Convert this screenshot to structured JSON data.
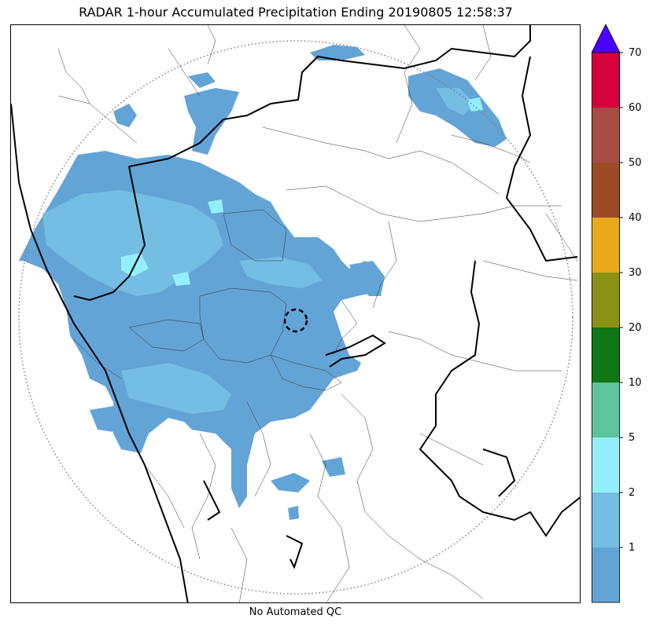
{
  "title": "RADAR 1-hour Accumulated Precipitation Ending 20190805 12:58:37",
  "footer_note": "No Automated QC",
  "colorbar": {
    "bins": [
      {
        "color": "#63a4d6"
      },
      {
        "color": "#74bde3"
      },
      {
        "color": "#94effd"
      },
      {
        "color": "#5ec49b"
      },
      {
        "color": "#107616"
      },
      {
        "color": "#8b9213"
      },
      {
        "color": "#e8a91a"
      },
      {
        "color": "#9c4b25"
      },
      {
        "color": "#a64c44"
      },
      {
        "color": "#d6003e"
      }
    ],
    "extend_color": "#4b00ff",
    "tick_labels": [
      "1",
      "2",
      "5",
      "10",
      "20",
      "30",
      "40",
      "50",
      "60",
      "70"
    ]
  },
  "map": {
    "light_color": "#63a4d6",
    "medium_color": "#74bde3",
    "bright_color": "#94effd",
    "range_ring_color": "#808080"
  }
}
